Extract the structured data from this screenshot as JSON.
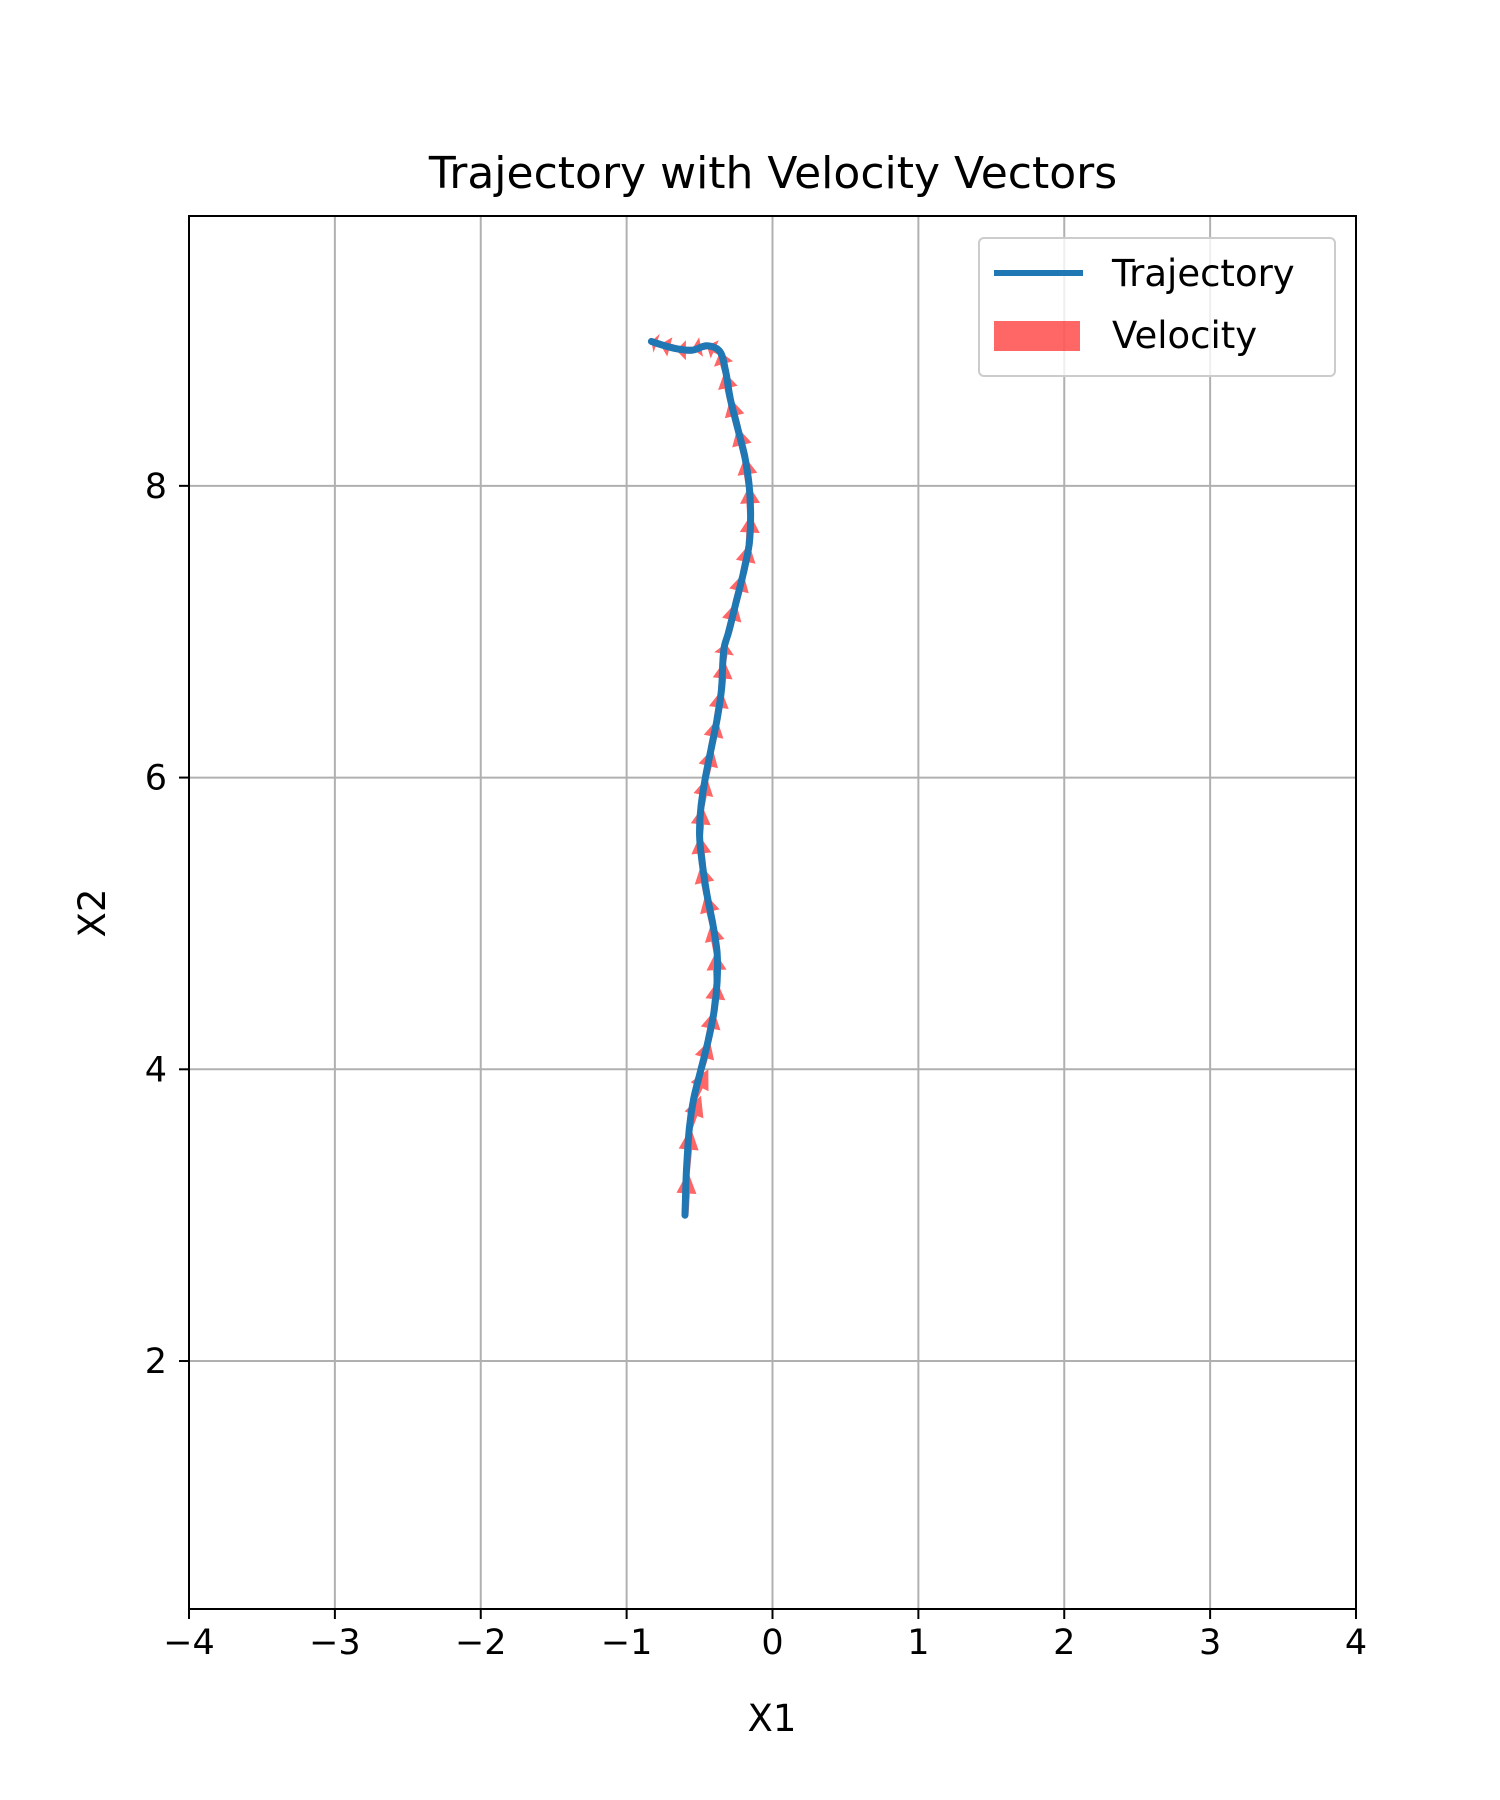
{
  "chart_data": {
    "type": "line",
    "title": "Trajectory with Velocity Vectors",
    "xlabel": "X1",
    "ylabel": "X2",
    "xlim": [
      -4,
      4
    ],
    "ylim": [
      0.3,
      9.85
    ],
    "xticks": [
      -4,
      -3,
      -2,
      -1,
      0,
      1,
      2,
      3,
      4
    ],
    "xtick_labels": [
      "−4",
      "−3",
      "−2",
      "−1",
      "0",
      "1",
      "2",
      "3",
      "4"
    ],
    "yticks": [
      2,
      4,
      6,
      8
    ],
    "ytick_labels": [
      "2",
      "4",
      "6",
      "8"
    ],
    "grid": true,
    "legend_position": "top-right",
    "legend": [
      "Trajectory",
      "Velocity"
    ],
    "series": [
      {
        "name": "Trajectory",
        "type": "line",
        "color": "#1f77b4",
        "x": [
          -0.6,
          -0.59,
          -0.57,
          -0.54,
          -0.49,
          -0.44,
          -0.4,
          -0.38,
          -0.38,
          -0.41,
          -0.45,
          -0.48,
          -0.5,
          -0.49,
          -0.46,
          -0.42,
          -0.38,
          -0.35,
          -0.34,
          -0.33,
          -0.3,
          -0.25,
          -0.2,
          -0.16,
          -0.15,
          -0.16,
          -0.19,
          -0.24,
          -0.29,
          -0.32,
          -0.36,
          -0.45,
          -0.55,
          -0.66,
          -0.77,
          -0.83
        ],
        "y": [
          3.0,
          3.3,
          3.6,
          3.8,
          4.0,
          4.2,
          4.4,
          4.6,
          4.8,
          5.0,
          5.2,
          5.4,
          5.6,
          5.8,
          6.0,
          6.2,
          6.4,
          6.6,
          6.8,
          6.9,
          7.0,
          7.2,
          7.4,
          7.6,
          7.8,
          8.0,
          8.2,
          8.4,
          8.6,
          8.78,
          8.92,
          8.96,
          8.93,
          8.94,
          8.97,
          8.99
        ]
      },
      {
        "name": "Velocity",
        "type": "quiver",
        "color": "#ff0000",
        "opacity": 0.6,
        "points": [
          {
            "x": -0.6,
            "y": 3.0,
            "u": 0.02,
            "v": 0.3
          },
          {
            "x": -0.59,
            "y": 3.3,
            "u": 0.03,
            "v": 0.3
          },
          {
            "x": -0.57,
            "y": 3.6,
            "u": 0.08,
            "v": 0.22
          },
          {
            "x": -0.54,
            "y": 3.8,
            "u": 0.1,
            "v": 0.2
          },
          {
            "x": -0.49,
            "y": 4.0,
            "u": 0.06,
            "v": 0.2
          },
          {
            "x": -0.44,
            "y": 4.2,
            "u": 0.04,
            "v": 0.2
          },
          {
            "x": -0.4,
            "y": 4.4,
            "u": 0.02,
            "v": 0.2
          },
          {
            "x": -0.38,
            "y": 4.6,
            "u": -0.01,
            "v": 0.2
          },
          {
            "x": -0.38,
            "y": 4.8,
            "u": -0.04,
            "v": 0.2
          },
          {
            "x": -0.41,
            "y": 5.0,
            "u": -0.05,
            "v": 0.2
          },
          {
            "x": -0.45,
            "y": 5.2,
            "u": -0.04,
            "v": 0.2
          },
          {
            "x": -0.48,
            "y": 5.4,
            "u": -0.02,
            "v": 0.2
          },
          {
            "x": -0.5,
            "y": 5.6,
            "u": 0.02,
            "v": 0.2
          },
          {
            "x": -0.49,
            "y": 5.8,
            "u": 0.04,
            "v": 0.2
          },
          {
            "x": -0.46,
            "y": 6.0,
            "u": 0.05,
            "v": 0.2
          },
          {
            "x": -0.42,
            "y": 6.2,
            "u": 0.04,
            "v": 0.2
          },
          {
            "x": -0.38,
            "y": 6.4,
            "u": 0.03,
            "v": 0.2
          },
          {
            "x": -0.35,
            "y": 6.6,
            "u": 0.02,
            "v": 0.2
          },
          {
            "x": -0.34,
            "y": 6.8,
            "u": 0.02,
            "v": 0.12
          },
          {
            "x": -0.3,
            "y": 7.0,
            "u": 0.05,
            "v": 0.2
          },
          {
            "x": -0.25,
            "y": 7.2,
            "u": 0.05,
            "v": 0.2
          },
          {
            "x": -0.2,
            "y": 7.4,
            "u": 0.04,
            "v": 0.2
          },
          {
            "x": -0.16,
            "y": 7.6,
            "u": 0.01,
            "v": 0.2
          },
          {
            "x": -0.15,
            "y": 7.8,
            "u": -0.01,
            "v": 0.2
          },
          {
            "x": -0.16,
            "y": 8.0,
            "u": -0.03,
            "v": 0.2
          },
          {
            "x": -0.19,
            "y": 8.2,
            "u": -0.05,
            "v": 0.2
          },
          {
            "x": -0.24,
            "y": 8.4,
            "u": -0.05,
            "v": 0.2
          },
          {
            "x": -0.29,
            "y": 8.6,
            "u": -0.04,
            "v": 0.18
          },
          {
            "x": -0.32,
            "y": 8.78,
            "u": -0.04,
            "v": 0.14
          },
          {
            "x": -0.36,
            "y": 8.92,
            "u": -0.09,
            "v": 0.04
          },
          {
            "x": -0.45,
            "y": 8.96,
            "u": -0.1,
            "v": -0.02
          },
          {
            "x": -0.55,
            "y": 8.93,
            "u": -0.11,
            "v": 0.0
          },
          {
            "x": -0.66,
            "y": 8.94,
            "u": -0.11,
            "v": 0.03
          },
          {
            "x": -0.77,
            "y": 8.97,
            "u": -0.06,
            "v": 0.02
          }
        ]
      }
    ]
  }
}
